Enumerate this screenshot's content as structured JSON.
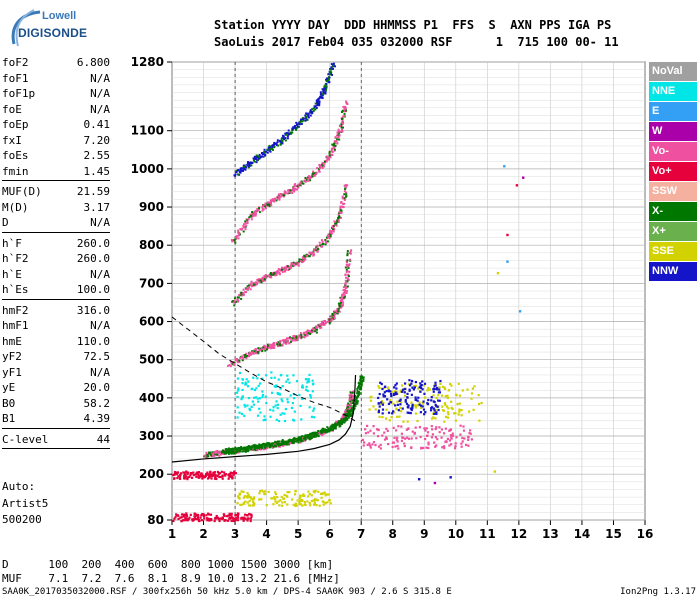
{
  "logo": {
    "line1": "Lowell",
    "line2": "DIGISONDE"
  },
  "header": {
    "labels": "Station YYYY DAY  DDD HHMMSS P1  FFS  S  AXN PPS IGA PS",
    "values": "SaoLuis 2017 Feb04 035 032000 RSF      1  715 100 00- 11"
  },
  "params": [
    [
      [
        "foF2",
        "6.800"
      ],
      [
        "foF1",
        "N/A"
      ],
      [
        "foF1p",
        "N/A"
      ],
      [
        "foE",
        "N/A"
      ],
      [
        "foEp",
        "0.41"
      ],
      [
        "fxI",
        "7.20"
      ],
      [
        "foEs",
        "2.55"
      ],
      [
        "fmin",
        "1.45"
      ]
    ],
    [
      [
        "MUF(D)",
        "21.59"
      ],
      [
        "M(D)",
        "3.17"
      ],
      [
        "D",
        "N/A"
      ]
    ],
    [
      [
        "h`F",
        "260.0"
      ],
      [
        "h`F2",
        "260.0"
      ],
      [
        "h`E",
        "N/A"
      ],
      [
        "h`Es",
        "100.0"
      ]
    ],
    [
      [
        "hmF2",
        "316.0"
      ],
      [
        "hmF1",
        "N/A"
      ],
      [
        "hmE",
        "110.0"
      ],
      [
        "yF2",
        "72.5"
      ],
      [
        "yF1",
        "N/A"
      ],
      [
        "yE",
        "20.0"
      ],
      [
        "B0",
        "58.2"
      ],
      [
        "B1",
        "4.39"
      ]
    ],
    [
      [
        "C-level",
        "44"
      ]
    ]
  ],
  "autoscale": {
    "line1": "Auto:",
    "line2": "Artist5",
    "line3": "500200"
  },
  "legend": [
    {
      "label": "NoVal",
      "color": "#a0a0a0"
    },
    {
      "label": "NNE",
      "color": "#00e6e6"
    },
    {
      "label": "E",
      "color": "#33a0f5"
    },
    {
      "label": "W",
      "color": "#aa00aa"
    },
    {
      "label": "Vo-",
      "color": "#f050a0"
    },
    {
      "label": "Vo+",
      "color": "#e6003c"
    },
    {
      "label": "SSW",
      "color": "#f5b0a0"
    },
    {
      "label": "X-",
      "color": "#007800"
    },
    {
      "label": "X+",
      "color": "#6ab04c"
    },
    {
      "label": "SSE",
      "color": "#d2d200"
    },
    {
      "label": "NNW",
      "color": "#1414c8"
    }
  ],
  "muf_table": {
    "d_label": "D",
    "d_values": [
      "100",
      "200",
      "400",
      "600",
      "800",
      "1000",
      "1500",
      "3000"
    ],
    "d_unit": "[km]",
    "muf_label": "MUF",
    "muf_values": [
      "7.1",
      "7.2",
      "7.6",
      "8.1",
      "8.9",
      "10.0",
      "13.2",
      "21.6"
    ],
    "muf_unit": "[MHz]"
  },
  "footer": {
    "left": "SAA0K_2017035032000.RSF / 300fx256h 50 kHz 5.0 km / DPS-4 SAA0K 903 / 2.6 S 315.8 E",
    "right": "Ion2Png 1.3.17"
  },
  "chart_data": {
    "type": "scatter",
    "xlim": [
      1,
      16
    ],
    "ylim": [
      80,
      1280
    ],
    "x_ticks": [
      1,
      2,
      3,
      4,
      5,
      6,
      7,
      8,
      9,
      10,
      11,
      12,
      13,
      14,
      15,
      16
    ],
    "y_ticks": [
      80,
      200,
      300,
      400,
      500,
      600,
      700,
      800,
      900,
      1000,
      1100,
      1280
    ],
    "grid": true,
    "traces": [
      {
        "name": "O-mode F-trace",
        "color": "#f050a0",
        "points": [
          [
            2.0,
            252
          ],
          [
            2.5,
            258
          ],
          [
            3.0,
            264
          ],
          [
            3.5,
            270
          ],
          [
            4.0,
            276
          ],
          [
            4.5,
            283
          ],
          [
            5.0,
            292
          ],
          [
            5.5,
            304
          ],
          [
            6.0,
            320
          ],
          [
            6.3,
            338
          ],
          [
            6.5,
            360
          ],
          [
            6.6,
            385
          ],
          [
            6.7,
            420
          ]
        ]
      },
      {
        "name": "X-mode F-trace",
        "color": "#007800",
        "points": [
          [
            2.6,
            262
          ],
          [
            3.0,
            266
          ],
          [
            3.5,
            272
          ],
          [
            4.0,
            278
          ],
          [
            4.5,
            285
          ],
          [
            5.0,
            294
          ],
          [
            5.5,
            306
          ],
          [
            6.0,
            322
          ],
          [
            6.4,
            342
          ],
          [
            6.7,
            372
          ],
          [
            6.9,
            420
          ],
          [
            7.0,
            460
          ]
        ]
      },
      {
        "name": "2nd hop",
        "color": "#f050a0",
        "points": [
          [
            2.8,
            490
          ],
          [
            3.5,
            520
          ],
          [
            4.0,
            535
          ],
          [
            4.5,
            548
          ],
          [
            5.0,
            562
          ],
          [
            5.5,
            580
          ],
          [
            6.0,
            608
          ],
          [
            6.3,
            640
          ],
          [
            6.5,
            700
          ],
          [
            6.6,
            790
          ]
        ]
      },
      {
        "name": "3rd hop",
        "color": "#f050a0",
        "points": [
          [
            2.9,
            650
          ],
          [
            3.5,
            700
          ],
          [
            4.0,
            720
          ],
          [
            4.5,
            738
          ],
          [
            5.0,
            758
          ],
          [
            5.5,
            785
          ],
          [
            6.0,
            830
          ],
          [
            6.3,
            880
          ],
          [
            6.5,
            960
          ]
        ]
      },
      {
        "name": "4th hop",
        "color": "#f050a0",
        "points": [
          [
            2.9,
            810
          ],
          [
            3.5,
            880
          ],
          [
            4.0,
            910
          ],
          [
            4.5,
            935
          ],
          [
            5.0,
            960
          ],
          [
            5.5,
            990
          ],
          [
            6.0,
            1040
          ],
          [
            6.3,
            1100
          ],
          [
            6.5,
            1180
          ]
        ]
      },
      {
        "name": "5th hop",
        "color": "#1414c8",
        "points": [
          [
            3.0,
            990
          ],
          [
            3.5,
            1020
          ],
          [
            4.0,
            1050
          ],
          [
            4.5,
            1080
          ],
          [
            5.0,
            1120
          ],
          [
            5.5,
            1160
          ],
          [
            5.8,
            1210
          ],
          [
            6.1,
            1280
          ]
        ]
      }
    ],
    "profile": {
      "name": "Electron density profile",
      "color": "#000000",
      "points": [
        [
          1,
          232
        ],
        [
          2,
          240
        ],
        [
          3,
          246
        ],
        [
          4,
          252
        ],
        [
          5,
          260
        ],
        [
          5.5,
          267
        ],
        [
          6,
          278
        ],
        [
          6.3,
          290
        ],
        [
          6.5,
          305
        ],
        [
          6.65,
          325
        ],
        [
          6.75,
          360
        ],
        [
          6.8,
          420
        ],
        [
          6.82,
          460
        ]
      ]
    },
    "muf_curve": {
      "name": "MUF curve",
      "color": "#000000",
      "dashed": true,
      "points": [
        [
          1,
          612
        ],
        [
          1.5,
          580
        ],
        [
          2,
          548
        ],
        [
          2.5,
          515
        ],
        [
          3,
          490
        ],
        [
          3.5,
          465
        ],
        [
          4,
          442
        ],
        [
          4.5,
          425
        ],
        [
          5,
          405
        ],
        [
          5.5,
          388
        ],
        [
          6,
          375
        ],
        [
          6.5,
          355
        ],
        [
          6.8,
          340
        ]
      ]
    },
    "clusters": [
      {
        "color": "#d2d200",
        "x": [
          7.2,
          10.8
        ],
        "y": [
          340,
          440
        ]
      },
      {
        "color": "#f050a0",
        "x": [
          7.0,
          10.5
        ],
        "y": [
          270,
          330
        ]
      },
      {
        "color": "#1414c8",
        "x": [
          7.5,
          9.5
        ],
        "y": [
          360,
          450
        ]
      },
      {
        "color": "#e6003c",
        "x": [
          1.0,
          3.0
        ],
        "y": [
          190,
          210
        ]
      },
      {
        "color": "#d2d200",
        "x": [
          3.0,
          6.0
        ],
        "y": [
          120,
          160
        ]
      },
      {
        "color": "#e6003c",
        "x": [
          1.0,
          3.5
        ],
        "y": [
          80,
          100
        ]
      },
      {
        "color": "#00e6e6",
        "x": [
          3.0,
          5.5
        ],
        "y": [
          340,
          470
        ]
      }
    ]
  }
}
